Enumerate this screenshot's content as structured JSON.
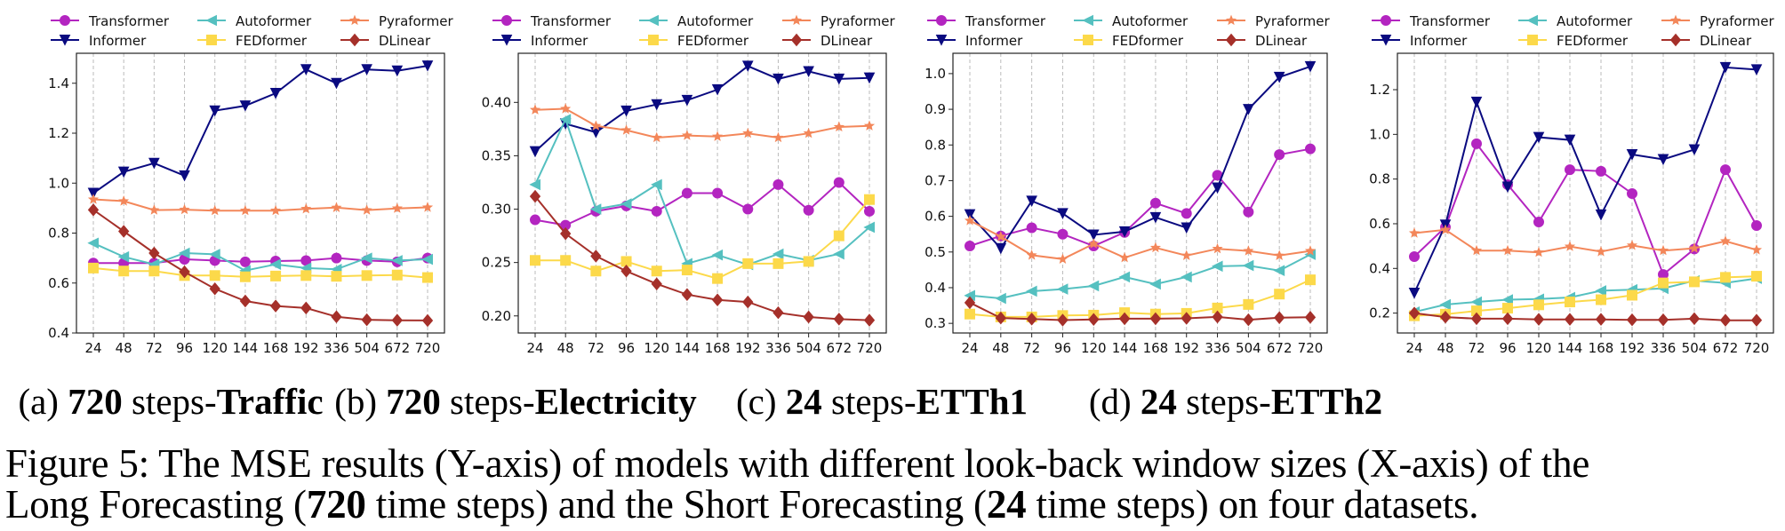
{
  "series_names": [
    "Transformer",
    "Informer",
    "Autoformer",
    "Pyraformer",
    "FEDformer",
    "DLinear"
  ],
  "series_colors": {
    "Transformer": "#b325c0",
    "Informer": "#0a0a80",
    "Autoformer": "#55c0c0",
    "Pyraformer": "#f3875a",
    "FEDformer": "#fcd94a",
    "DLinear": "#a5302a"
  },
  "series_markers": {
    "Transformer": "circle",
    "Informer": "triangle-down",
    "Autoformer": "triangle-left",
    "Pyraformer": "star",
    "FEDformer": "square",
    "DLinear": "diamond"
  },
  "chart_data": [
    {
      "type": "line",
      "grid": "vertical dashed",
      "legend": "top",
      "x": [
        "24",
        "48",
        "72",
        "96",
        "120",
        "144",
        "168",
        "192",
        "336",
        "504",
        "672",
        "720"
      ],
      "ylim": [
        0.4,
        1.52
      ],
      "y_ticks": [
        "0.4",
        "0.6",
        "0.8",
        "1.0",
        "1.2",
        "1.4"
      ],
      "y_tick_values": [
        0.4,
        0.6,
        0.8,
        1.0,
        1.2,
        1.4
      ],
      "series": [
        {
          "name": "Transformer",
          "values": [
            0.68,
            0.68,
            0.68,
            0.695,
            0.69,
            0.685,
            0.688,
            0.69,
            0.7,
            0.69,
            0.685,
            0.7
          ]
        },
        {
          "name": "Informer",
          "values": [
            0.96,
            1.045,
            1.08,
            1.03,
            1.29,
            1.31,
            1.36,
            1.455,
            1.4,
            1.455,
            1.45,
            1.47
          ]
        },
        {
          "name": "Autoformer",
          "values": [
            0.76,
            0.705,
            0.675,
            0.72,
            0.715,
            0.65,
            0.675,
            0.66,
            0.655,
            0.7,
            0.69,
            0.695
          ]
        },
        {
          "name": "Pyraformer",
          "values": [
            0.935,
            0.928,
            0.892,
            0.894,
            0.89,
            0.89,
            0.89,
            0.897,
            0.902,
            0.892,
            0.899,
            0.903
          ]
        },
        {
          "name": "FEDformer",
          "values": [
            0.66,
            0.648,
            0.648,
            0.63,
            0.63,
            0.625,
            0.628,
            0.63,
            0.627,
            0.63,
            0.632,
            0.622
          ]
        },
        {
          "name": "DLinear",
          "values": [
            0.893,
            0.807,
            0.72,
            0.645,
            0.577,
            0.528,
            0.508,
            0.5,
            0.465,
            0.453,
            0.451,
            0.45
          ]
        }
      ]
    },
    {
      "type": "line",
      "grid": "vertical dashed",
      "legend": "top",
      "x": [
        "24",
        "48",
        "72",
        "96",
        "120",
        "144",
        "168",
        "192",
        "336",
        "504",
        "672",
        "720"
      ],
      "ylim": [
        0.184,
        0.446
      ],
      "y_ticks": [
        "0.20",
        "0.25",
        "0.30",
        "0.35",
        "0.40"
      ],
      "y_tick_values": [
        0.2,
        0.25,
        0.3,
        0.35,
        0.4
      ],
      "series": [
        {
          "name": "Transformer",
          "values": [
            0.29,
            0.285,
            0.298,
            0.303,
            0.298,
            0.315,
            0.315,
            0.3,
            0.323,
            0.299,
            0.325,
            0.298
          ]
        },
        {
          "name": "Informer",
          "values": [
            0.354,
            0.38,
            0.372,
            0.392,
            0.398,
            0.402,
            0.412,
            0.434,
            0.422,
            0.429,
            0.422,
            0.423
          ]
        },
        {
          "name": "Autoformer",
          "values": [
            0.323,
            0.384,
            0.3,
            0.305,
            0.323,
            0.249,
            0.257,
            0.248,
            0.258,
            0.252,
            0.258,
            0.283
          ]
        },
        {
          "name": "Pyraformer",
          "values": [
            0.393,
            0.394,
            0.378,
            0.374,
            0.367,
            0.369,
            0.368,
            0.371,
            0.367,
            0.371,
            0.377,
            0.378
          ]
        },
        {
          "name": "FEDformer",
          "values": [
            0.252,
            0.252,
            0.242,
            0.251,
            0.242,
            0.243,
            0.235,
            0.249,
            0.249,
            0.251,
            0.275,
            0.309
          ]
        },
        {
          "name": "DLinear",
          "values": [
            0.312,
            0.277,
            0.256,
            0.242,
            0.23,
            0.22,
            0.215,
            0.213,
            0.203,
            0.199,
            0.197,
            0.196
          ]
        }
      ]
    },
    {
      "type": "line",
      "grid": "vertical dashed",
      "legend": "top",
      "x": [
        "24",
        "48",
        "72",
        "96",
        "120",
        "144",
        "168",
        "192",
        "336",
        "504",
        "672",
        "720"
      ],
      "ylim": [
        0.273,
        1.057
      ],
      "y_ticks": [
        "0.3",
        "0.4",
        "0.5",
        "0.6",
        "0.7",
        "0.8",
        "0.9",
        "1.0"
      ],
      "y_tick_values": [
        0.3,
        0.4,
        0.5,
        0.6,
        0.7,
        0.8,
        0.9,
        1.0
      ],
      "series": [
        {
          "name": "Transformer",
          "values": [
            0.517,
            0.545,
            0.568,
            0.55,
            0.517,
            0.555,
            0.637,
            0.608,
            0.715,
            0.612,
            0.773,
            0.789
          ]
        },
        {
          "name": "Informer",
          "values": [
            0.605,
            0.51,
            0.643,
            0.608,
            0.548,
            0.557,
            0.597,
            0.568,
            0.68,
            0.9,
            0.99,
            1.02
          ]
        },
        {
          "name": "Autoformer",
          "values": [
            0.378,
            0.37,
            0.39,
            0.396,
            0.405,
            0.43,
            0.41,
            0.43,
            0.46,
            0.462,
            0.448,
            0.493
          ]
        },
        {
          "name": "Pyraformer",
          "values": [
            0.588,
            0.543,
            0.491,
            0.48,
            0.523,
            0.484,
            0.512,
            0.49,
            0.509,
            0.503,
            0.49,
            0.503
          ]
        },
        {
          "name": "FEDformer",
          "values": [
            0.326,
            0.318,
            0.318,
            0.322,
            0.323,
            0.33,
            0.326,
            0.328,
            0.343,
            0.353,
            0.382,
            0.422
          ]
        },
        {
          "name": "DLinear",
          "values": [
            0.358,
            0.315,
            0.312,
            0.309,
            0.311,
            0.313,
            0.313,
            0.314,
            0.318,
            0.31,
            0.316,
            0.317
          ]
        }
      ]
    },
    {
      "type": "line",
      "grid": "vertical dashed",
      "legend": "top",
      "x": [
        "24",
        "48",
        "72",
        "96",
        "120",
        "144",
        "168",
        "192",
        "336",
        "504",
        "672",
        "720"
      ],
      "ylim": [
        0.111,
        1.363
      ],
      "y_ticks": [
        "0.2",
        "0.4",
        "0.6",
        "0.8",
        "1.0",
        "1.2"
      ],
      "y_tick_values": [
        0.2,
        0.4,
        0.6,
        0.8,
        1.0,
        1.2
      ],
      "series": [
        {
          "name": "Transformer",
          "values": [
            0.453,
            0.585,
            0.958,
            0.775,
            0.608,
            0.842,
            0.835,
            0.735,
            0.373,
            0.487,
            0.842,
            0.592
          ]
        },
        {
          "name": "Informer",
          "values": [
            0.29,
            0.595,
            1.145,
            0.765,
            0.987,
            0.975,
            0.64,
            0.91,
            0.888,
            0.932,
            1.3,
            1.29
          ]
        },
        {
          "name": "Autoformer",
          "values": [
            0.205,
            0.238,
            0.25,
            0.26,
            0.263,
            0.27,
            0.3,
            0.305,
            0.31,
            0.345,
            0.335,
            0.355
          ]
        },
        {
          "name": "Pyraformer",
          "values": [
            0.558,
            0.573,
            0.48,
            0.48,
            0.472,
            0.498,
            0.475,
            0.503,
            0.48,
            0.49,
            0.522,
            0.483
          ]
        },
        {
          "name": "FEDformer",
          "values": [
            0.188,
            0.195,
            0.21,
            0.222,
            0.237,
            0.25,
            0.26,
            0.28,
            0.335,
            0.34,
            0.36,
            0.365
          ]
        },
        {
          "name": "DLinear",
          "values": [
            0.2,
            0.182,
            0.175,
            0.175,
            0.172,
            0.172,
            0.172,
            0.17,
            0.17,
            0.175,
            0.168,
            0.168
          ]
        }
      ]
    }
  ],
  "subcaptions": [
    {
      "prefix": "(a) ",
      "bold1": "720",
      "mid": " steps-",
      "bold2": "Traffic"
    },
    {
      "prefix": "(b) ",
      "bold1": "720",
      "mid": " steps-",
      "bold2": "Electricity"
    },
    {
      "prefix": "(c) ",
      "bold1": "24",
      "mid": " steps-",
      "bold2": "ETTh1"
    },
    {
      "prefix": "(d) ",
      "bold1": "24",
      "mid": " steps-",
      "bold2": "ETTh2"
    }
  ],
  "caption": {
    "line1": "Figure 5: The MSE results (Y-axis) of models with different look-back window sizes (X-axis) of the",
    "line2_a": "Long Forecasting (",
    "line2_b": "720",
    "line2_c": " time steps) and the Short Forecasting (",
    "line2_d": "24",
    "line2_e": " time steps) on four datasets."
  }
}
